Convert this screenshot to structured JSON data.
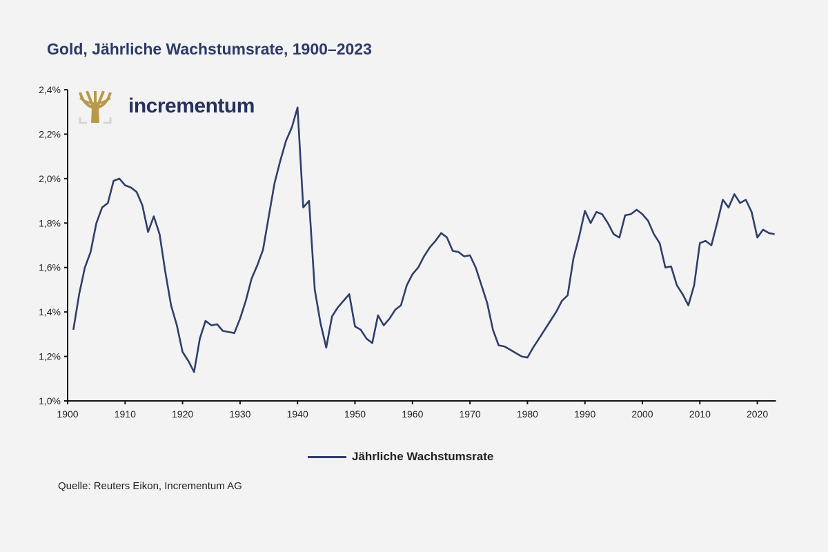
{
  "chart_data": {
    "type": "line",
    "title": "Gold, Jährliche Wachstumsrate, 1900–2023",
    "xlabel": "",
    "ylabel": "",
    "xlim": [
      1900,
      2023
    ],
    "ylim": [
      1.0,
      2.4
    ],
    "x_ticks": [
      "1900",
      "1910",
      "1920",
      "1930",
      "1940",
      "1950",
      "1960",
      "1970",
      "1980",
      "1990",
      "2000",
      "2010",
      "2020"
    ],
    "y_ticks": [
      "1,0%",
      "1,2%",
      "1,4%",
      "1,6%",
      "1,8%",
      "2,0%",
      "2,2%",
      "2,4%"
    ],
    "grid": false,
    "legend_position": "bottom",
    "series": [
      {
        "name": "Jährliche Wachstumsrate",
        "color": "#2e3e6b",
        "x_start": 1901,
        "values": [
          1.32,
          1.48,
          1.6,
          1.67,
          1.8,
          1.87,
          1.89,
          1.99,
          2.0,
          1.97,
          1.96,
          1.94,
          1.88,
          1.76,
          1.83,
          1.75,
          1.58,
          1.43,
          1.34,
          1.22,
          1.18,
          1.13,
          1.28,
          1.36,
          1.34,
          1.345,
          1.315,
          1.31,
          1.305,
          1.37,
          1.45,
          1.55,
          1.61,
          1.68,
          1.83,
          1.98,
          2.08,
          2.17,
          2.23,
          2.32,
          1.87,
          1.9,
          1.5,
          1.35,
          1.24,
          1.38,
          1.42,
          1.45,
          1.48,
          1.335,
          1.32,
          1.28,
          1.26,
          1.385,
          1.34,
          1.37,
          1.41,
          1.43,
          1.52,
          1.57,
          1.6,
          1.65,
          1.69,
          1.72,
          1.755,
          1.735,
          1.675,
          1.67,
          1.65,
          1.655,
          1.6,
          1.52,
          1.44,
          1.32,
          1.25,
          1.245,
          1.23,
          1.215,
          1.2,
          1.195,
          1.24,
          1.28,
          1.32,
          1.36,
          1.4,
          1.45,
          1.475,
          1.64,
          1.74,
          1.855,
          1.8,
          1.85,
          1.84,
          1.8,
          1.75,
          1.735,
          1.835,
          1.84,
          1.86,
          1.84,
          1.81,
          1.75,
          1.71,
          1.6,
          1.605,
          1.52,
          1.48,
          1.43,
          1.52,
          1.71,
          1.72,
          1.7,
          1.8,
          1.905,
          1.87,
          1.93,
          1.89,
          1.905,
          1.85,
          1.735,
          1.77,
          1.755,
          1.75
        ]
      }
    ]
  },
  "logo": {
    "text": "incrementum",
    "color": "#b8994a"
  },
  "source": "Quelle: Reuters Eikon, Incrementum AG"
}
